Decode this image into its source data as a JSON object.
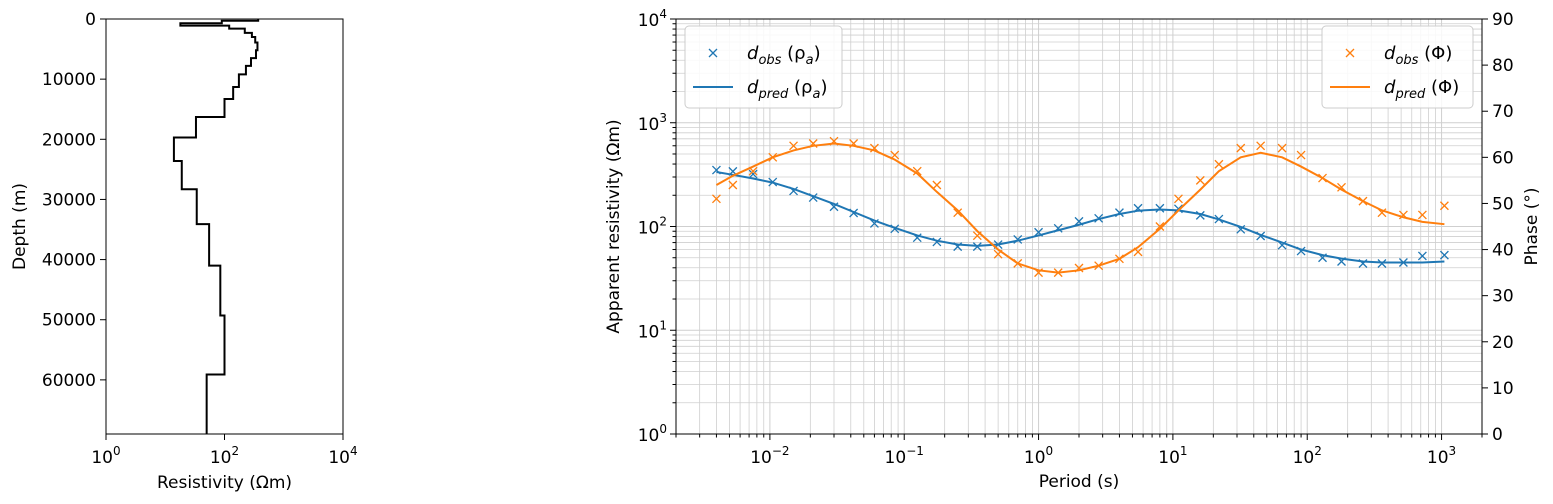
{
  "chart_data": [
    {
      "type": "line",
      "name": "resistivity-depth-model",
      "xlabel": "Resistivity (Ωm)",
      "ylabel": "Depth (m)",
      "x_scale": "log",
      "x_range": [
        1,
        10000
      ],
      "y_range": [
        0,
        69000
      ],
      "y_inverted": true,
      "x_ticks": [
        {
          "value": 1,
          "base": "10",
          "exp": "0"
        },
        {
          "value": 100,
          "base": "10",
          "exp": "2"
        },
        {
          "value": 10000,
          "base": "10",
          "exp": "4"
        }
      ],
      "y_ticks": [
        {
          "value": 0,
          "label": "0"
        },
        {
          "value": 10000,
          "label": "10000"
        },
        {
          "value": 20000,
          "label": "20000"
        },
        {
          "value": 30000,
          "label": "30000"
        },
        {
          "value": 40000,
          "label": "40000"
        },
        {
          "value": 50000,
          "label": "50000"
        },
        {
          "value": 60000,
          "label": "60000"
        }
      ],
      "grid": false,
      "color": "#000000",
      "layers": [
        {
          "top": 0,
          "bottom": 300,
          "resistivity": 370
        },
        {
          "top": 300,
          "bottom": 700,
          "resistivity": 90
        },
        {
          "top": 700,
          "bottom": 1100,
          "resistivity": 18
        },
        {
          "top": 1100,
          "bottom": 1600,
          "resistivity": 120
        },
        {
          "top": 1600,
          "bottom": 2300,
          "resistivity": 220
        },
        {
          "top": 2300,
          "bottom": 3000,
          "resistivity": 290
        },
        {
          "top": 3000,
          "bottom": 3900,
          "resistivity": 330
        },
        {
          "top": 3900,
          "bottom": 5200,
          "resistivity": 360
        },
        {
          "top": 5200,
          "bottom": 6500,
          "resistivity": 340
        },
        {
          "top": 6500,
          "bottom": 7800,
          "resistivity": 280
        },
        {
          "top": 7800,
          "bottom": 9200,
          "resistivity": 230
        },
        {
          "top": 9200,
          "bottom": 11300,
          "resistivity": 175
        },
        {
          "top": 11300,
          "bottom": 13300,
          "resistivity": 140
        },
        {
          "top": 13300,
          "bottom": 16300,
          "resistivity": 100
        },
        {
          "top": 16300,
          "bottom": 19700,
          "resistivity": 33
        },
        {
          "top": 19700,
          "bottom": 23600,
          "resistivity": 14
        },
        {
          "top": 23600,
          "bottom": 28300,
          "resistivity": 19
        },
        {
          "top": 28300,
          "bottom": 34100,
          "resistivity": 34
        },
        {
          "top": 34100,
          "bottom": 41000,
          "resistivity": 55
        },
        {
          "top": 41000,
          "bottom": 49300,
          "resistivity": 85
        },
        {
          "top": 49300,
          "bottom": 59100,
          "resistivity": 100
        },
        {
          "top": 59100,
          "bottom": 69000,
          "resistivity": 50
        }
      ]
    },
    {
      "type": "line",
      "name": "mt-sounding-fit",
      "xlabel": "Period (s)",
      "ylabel": "Apparent resistivity (Ωm)",
      "y2label": "Phase (°)",
      "x_scale": "log",
      "y_scale": "log",
      "x_range": [
        0.002,
        2000
      ],
      "y_range": [
        1,
        10000
      ],
      "y2_range": [
        0,
        90
      ],
      "grid": true,
      "x_ticks": [
        {
          "value": 0.01,
          "base": "10",
          "exp": "−2"
        },
        {
          "value": 0.1,
          "base": "10",
          "exp": "−1"
        },
        {
          "value": 1,
          "base": "10",
          "exp": "0"
        },
        {
          "value": 10,
          "base": "10",
          "exp": "1"
        },
        {
          "value": 100,
          "base": "10",
          "exp": "2"
        },
        {
          "value": 1000,
          "base": "10",
          "exp": "3"
        }
      ],
      "y_ticks": [
        {
          "value": 1,
          "base": "10",
          "exp": "0"
        },
        {
          "value": 10,
          "base": "10",
          "exp": "1"
        },
        {
          "value": 100,
          "base": "10",
          "exp": "2"
        },
        {
          "value": 1000,
          "base": "10",
          "exp": "3"
        },
        {
          "value": 10000,
          "base": "10",
          "exp": "4"
        }
      ],
      "y2_ticks": [
        0,
        10,
        20,
        30,
        40,
        50,
        60,
        70,
        80,
        90
      ],
      "legend_left": {
        "placement": "upper-left",
        "entries": [
          {
            "marker": "x",
            "color": "#1f77b4",
            "main": "d",
            "sub": "obs",
            "paren": "(ρ",
            "psub": "a",
            "close": ")"
          },
          {
            "marker": "line",
            "color": "#1f77b4",
            "main": "d",
            "sub": "pred",
            "paren": "(ρ",
            "psub": "a",
            "close": ")"
          }
        ]
      },
      "legend_right": {
        "placement": "upper-right",
        "entries": [
          {
            "marker": "x",
            "color": "#ff7f0e",
            "main": "d",
            "sub": "obs",
            "paren": "(Φ",
            "psub": "",
            "close": ")"
          },
          {
            "marker": "line",
            "color": "#ff7f0e",
            "main": "d",
            "sub": "pred",
            "paren": "(Φ",
            "psub": "",
            "close": ")"
          }
        ]
      },
      "period": [
        0.004,
        0.0053,
        0.0075,
        0.0105,
        0.015,
        0.021,
        0.03,
        0.042,
        0.06,
        0.085,
        0.125,
        0.175,
        0.25,
        0.35,
        0.5,
        0.7,
        1.0,
        1.4,
        2.0,
        2.8,
        4.0,
        5.5,
        8.0,
        11,
        16,
        22,
        32,
        45,
        65,
        90,
        130,
        180,
        260,
        360,
        520,
        720,
        1050
      ],
      "series": [
        {
          "name": "dobs (ρa)",
          "axis": "left",
          "kind": "marker",
          "color": "#1f77b4",
          "values": [
            350,
            340,
            320,
            268,
            220,
            190,
            155,
            135,
            107,
            95,
            78,
            71,
            64,
            64,
            67,
            75,
            88,
            96,
            112,
            120,
            136,
            150,
            150,
            148,
            128,
            118,
            94,
            81,
            66,
            58,
            50,
            46,
            44,
            44,
            45,
            52,
            53
          ]
        },
        {
          "name": "dpred (ρa)",
          "axis": "left",
          "kind": "line",
          "color": "#1f77b4",
          "values": [
            335,
            315,
            290,
            265,
            230,
            196,
            165,
            138,
            114,
            97,
            82,
            73,
            67,
            65,
            67,
            73,
            82,
            92,
            104,
            118,
            132,
            142,
            146,
            143,
            132,
            117,
            99,
            83,
            70,
            60,
            53,
            49,
            46,
            45,
            45,
            45,
            46
          ]
        },
        {
          "name": "dobs (Φ)",
          "axis": "right",
          "kind": "marker",
          "color": "#ff7f0e",
          "values": [
            51,
            54,
            57,
            60,
            62.5,
            63,
            63.5,
            63,
            62,
            60.5,
            57,
            54,
            48,
            43,
            39,
            37,
            35,
            35,
            36,
            36.5,
            38,
            39.5,
            45,
            51,
            55,
            58.5,
            62,
            62.5,
            62,
            60.5,
            55.5,
            53.5,
            50.5,
            48,
            47.5,
            47.5,
            49.5
          ]
        },
        {
          "name": "dpred (Φ)",
          "axis": "right",
          "kind": "line",
          "color": "#ff7f0e",
          "values": [
            54,
            56,
            58,
            60,
            61.5,
            62.5,
            63,
            62.5,
            61.5,
            59.5,
            56.5,
            52.5,
            48.5,
            44,
            40,
            37,
            35.5,
            35,
            35.5,
            36.5,
            38,
            40.5,
            44.5,
            48.5,
            53,
            57,
            60,
            61,
            60,
            58,
            55.5,
            53,
            50.5,
            48.5,
            47,
            46,
            45.5
          ]
        }
      ]
    }
  ]
}
